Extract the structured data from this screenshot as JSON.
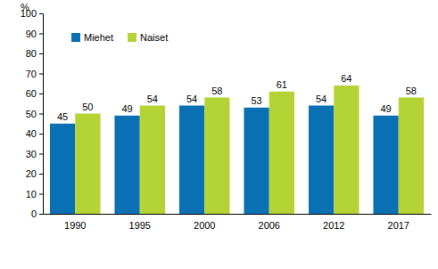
{
  "chart_data": {
    "type": "bar",
    "ylabel": "%",
    "categories": [
      "1990",
      "1995",
      "2000",
      "2006",
      "2012",
      "2017"
    ],
    "series": [
      {
        "name": "Miehet",
        "color": "#0a70b4",
        "values": [
          45,
          49,
          54,
          53,
          54,
          49
        ]
      },
      {
        "name": "Naiset",
        "color": "#b4d335",
        "values": [
          50,
          54,
          58,
          61,
          64,
          58
        ]
      }
    ],
    "ylim": [
      0,
      100
    ],
    "yticks": [
      0,
      10,
      20,
      30,
      40,
      50,
      60,
      70,
      80,
      90,
      100
    ],
    "grid": false,
    "legend": "top-left",
    "data_labels": true
  }
}
